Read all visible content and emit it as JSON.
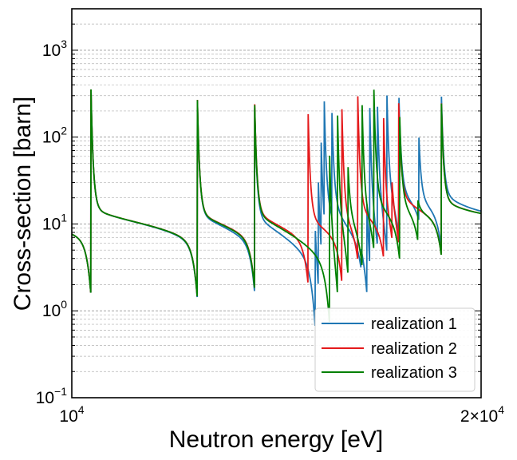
{
  "chart_data": {
    "type": "line",
    "xlabel": "Neutron energy [eV]",
    "ylabel": "Cross-section [barn]",
    "xscale": "log",
    "yscale": "log",
    "xlim": [
      10000,
      20000
    ],
    "ylim": [
      0.1,
      3000
    ],
    "grid": "y-major-and-minor-dashed",
    "legend_position": "bottom-right",
    "x_ticks": [
      {
        "value": 10000,
        "mantissa": "",
        "base": "10",
        "exp": "4"
      },
      {
        "value": 20000,
        "mantissa": "2×",
        "base": "10",
        "exp": "4"
      }
    ],
    "y_ticks": [
      {
        "value": 0.1,
        "base": "10",
        "exp": "−1"
      },
      {
        "value": 1,
        "base": "10",
        "exp": "0"
      },
      {
        "value": 10,
        "base": "10",
        "exp": "1"
      },
      {
        "value": 100,
        "base": "10",
        "exp": "2"
      },
      {
        "value": 1000,
        "base": "10",
        "exp": "3"
      }
    ],
    "shared_resonances": [
      {
        "e": 10330,
        "dip": 2.6,
        "peak": 260
      },
      {
        "e": 12370,
        "dip": 2.6,
        "peak": 220
      },
      {
        "e": 13630,
        "dip": 3.1,
        "peak": 200
      },
      {
        "e": 18700,
        "dip": 4.5,
        "peak": 145
      }
    ],
    "series": [
      {
        "name": "realization 1",
        "color": "#1f77b4",
        "background": 11,
        "resonances": [
          {
            "e": 15100,
            "dip": 4.0,
            "peak": 35
          },
          {
            "e": 15180,
            "dip": 5.0,
            "peak": 55
          },
          {
            "e": 15250,
            "dip": 6.0,
            "peak": 75
          },
          {
            "e": 15330,
            "dip": 7.0,
            "peak": 120
          },
          {
            "e": 15530,
            "dip": 10.0,
            "peak": 140
          },
          {
            "e": 16320,
            "dip": 8.0,
            "peak": 12
          },
          {
            "e": 16480,
            "dip": 6.0,
            "peak": 50
          },
          {
            "e": 16560,
            "dip": 4.0,
            "peak": 155
          },
          {
            "e": 16780,
            "dip": 6.0,
            "peak": 150
          },
          {
            "e": 17050,
            "dip": 4.3,
            "peak": 160
          },
          {
            "e": 17400,
            "dip": 5.0,
            "peak": 130
          },
          {
            "e": 18000,
            "dip": 8.0,
            "peak": 55
          }
        ]
      },
      {
        "name": "realization 2",
        "color": "#e41a1c",
        "background": 11,
        "resonances": [
          {
            "e": 14920,
            "dip": 3.8,
            "peak": 190
          },
          {
            "e": 15800,
            "dip": 3.9,
            "peak": 200
          },
          {
            "e": 16230,
            "dip": 5.0,
            "peak": 215
          },
          {
            "e": 16950,
            "dip": 6.0,
            "peak": 180
          },
          {
            "e": 17200,
            "dip": 7.0,
            "peak": 25
          },
          {
            "e": 17390,
            "dip": 5.0,
            "peak": 140
          }
        ]
      },
      {
        "name": "realization 3",
        "color": "#008000",
        "background": 11,
        "resonances": [
          {
            "e": 15470,
            "dip": 3.2,
            "peak": 160
          },
          {
            "e": 15680,
            "dip": 3.5,
            "peak": 230
          },
          {
            "e": 15960,
            "dip": 4.0,
            "peak": 45
          },
          {
            "e": 16350,
            "dip": 4.5,
            "peak": 180
          },
          {
            "e": 16680,
            "dip": 5.0,
            "peak": 190
          },
          {
            "e": 17420,
            "dip": 4.5,
            "peak": 130
          },
          {
            "e": 17970,
            "dip": 6.0,
            "peak": 14
          }
        ]
      }
    ]
  }
}
